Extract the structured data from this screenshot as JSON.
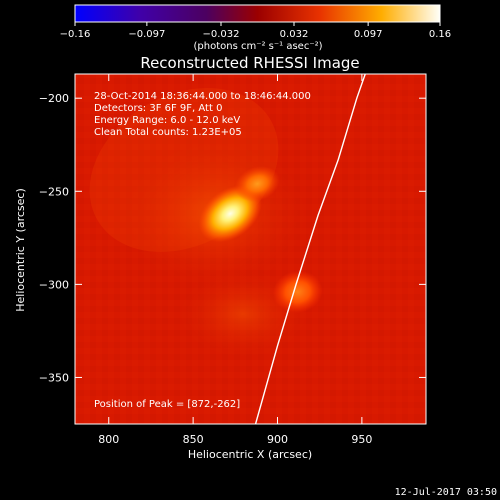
{
  "chart_data": {
    "type": "heatmap",
    "title": "Reconstructed RHESSI Image",
    "xlabel": "Heliocentric X (arcsec)",
    "ylabel": "Heliocentric Y (arcsec)",
    "x_ticks": [
      "800",
      "850",
      "900",
      "950"
    ],
    "y_ticks": [
      "−200",
      "−250",
      "−300",
      "−350"
    ],
    "xlim": [
      780,
      988
    ],
    "ylim": [
      -375,
      -187
    ],
    "colorbar": {
      "range": [
        -0.16,
        0.16
      ],
      "tick_labels": [
        "−0.16",
        "−0.097",
        "−0.032",
        "0.032",
        "0.097",
        "0.16"
      ],
      "units_label": "(photons cm⁻² s⁻¹ asec⁻²)"
    },
    "annotations": [
      "28-Oct-2014 18:36:44.000 to 18:46:44.000",
      "Detectors: 3F 6F 9F, Att 0",
      "Energy Range: 6.0 - 12.0 keV",
      "Clean    Total counts: 1.23E+05"
    ],
    "peak_label": "Position of Peak = [872,-262]",
    "footer_date": "12-Jul-2017 03:50",
    "peak_position": [
      872,
      -262
    ],
    "sources": [
      {
        "x": 872,
        "y": -262,
        "intensity": 0.16
      },
      {
        "x": 888,
        "y": -246,
        "intensity": 0.09
      },
      {
        "x": 912,
        "y": -304,
        "intensity": 0.075
      }
    ],
    "limb_points": [
      [
        887,
        -375
      ],
      [
        900,
        -333
      ],
      [
        911,
        -300
      ],
      [
        924,
        -263
      ],
      [
        936,
        -233
      ],
      [
        947,
        -200
      ],
      [
        952,
        -187
      ]
    ]
  }
}
